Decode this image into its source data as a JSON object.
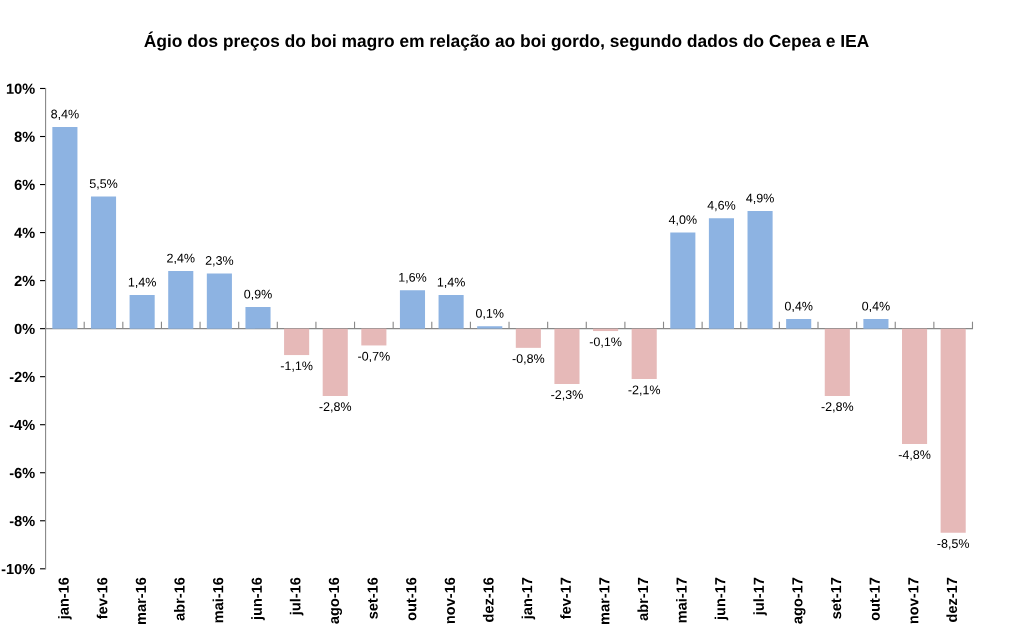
{
  "chart_data": {
    "type": "bar",
    "title": "Ágio dos preços do boi magro em relação ao boi gordo, segundo dados do Cepea e IEA",
    "categories": [
      "jan-16",
      "fev-16",
      "mar-16",
      "abr-16",
      "mai-16",
      "jun-16",
      "jul-16",
      "ago-16",
      "set-16",
      "out-16",
      "nov-16",
      "dez-16",
      "jan-17",
      "fev-17",
      "mar-17",
      "abr-17",
      "mai-17",
      "jun-17",
      "jul-17",
      "ago-17",
      "set-17",
      "out-17",
      "nov-17",
      "dez-17"
    ],
    "values": [
      8.4,
      5.5,
      1.4,
      2.4,
      2.3,
      0.9,
      -1.1,
      -2.8,
      -0.7,
      1.6,
      1.4,
      0.1,
      -0.8,
      -2.3,
      -0.1,
      -2.1,
      4.0,
      4.6,
      4.9,
      0.4,
      -2.8,
      0.4,
      -4.8,
      -8.5
    ],
    "value_labels": [
      "8,4%",
      "5,5%",
      "1,4%",
      "2,4%",
      "2,3%",
      "0,9%",
      "-1,1%",
      "-2,8%",
      "-0,7%",
      "1,6%",
      "1,4%",
      "0,1%",
      "-0,8%",
      "-2,3%",
      "-0,1%",
      "-2,1%",
      "4,0%",
      "4,6%",
      "4,9%",
      "0,4%",
      "-2,8%",
      "0,4%",
      "-4,8%",
      "-8,5%"
    ],
    "colors": [
      "#8db3e2",
      "#8db3e2",
      "#8db3e2",
      "#8db3e2",
      "#8db3e2",
      "#8db3e2",
      "#e6b9b8",
      "#e6b9b8",
      "#e6b9b8",
      "#8db3e2",
      "#8db3e2",
      "#8db3e2",
      "#e6b9b8",
      "#e6b9b8",
      "#e6b9b8",
      "#e6b9b8",
      "#8db3e2",
      "#8db3e2",
      "#8db3e2",
      "#8db3e2",
      "#e6b9b8",
      "#8db3e2",
      "#e6b9b8",
      "#e6b9b8"
    ],
    "ylim": [
      -10,
      10
    ],
    "yticks": [
      {
        "value": -10,
        "label": "-10%"
      },
      {
        "value": -8,
        "label": "-8%"
      },
      {
        "value": -6,
        "label": "-6%"
      },
      {
        "value": -4,
        "label": "-4%"
      },
      {
        "value": -2,
        "label": "-2%"
      },
      {
        "value": 0,
        "label": "0%"
      },
      {
        "value": 2,
        "label": "2%"
      },
      {
        "value": 4,
        "label": "4%"
      },
      {
        "value": 6,
        "label": "6%"
      },
      {
        "value": 8,
        "label": "8%"
      },
      {
        "value": 10,
        "label": "10%"
      }
    ],
    "legend": false
  }
}
